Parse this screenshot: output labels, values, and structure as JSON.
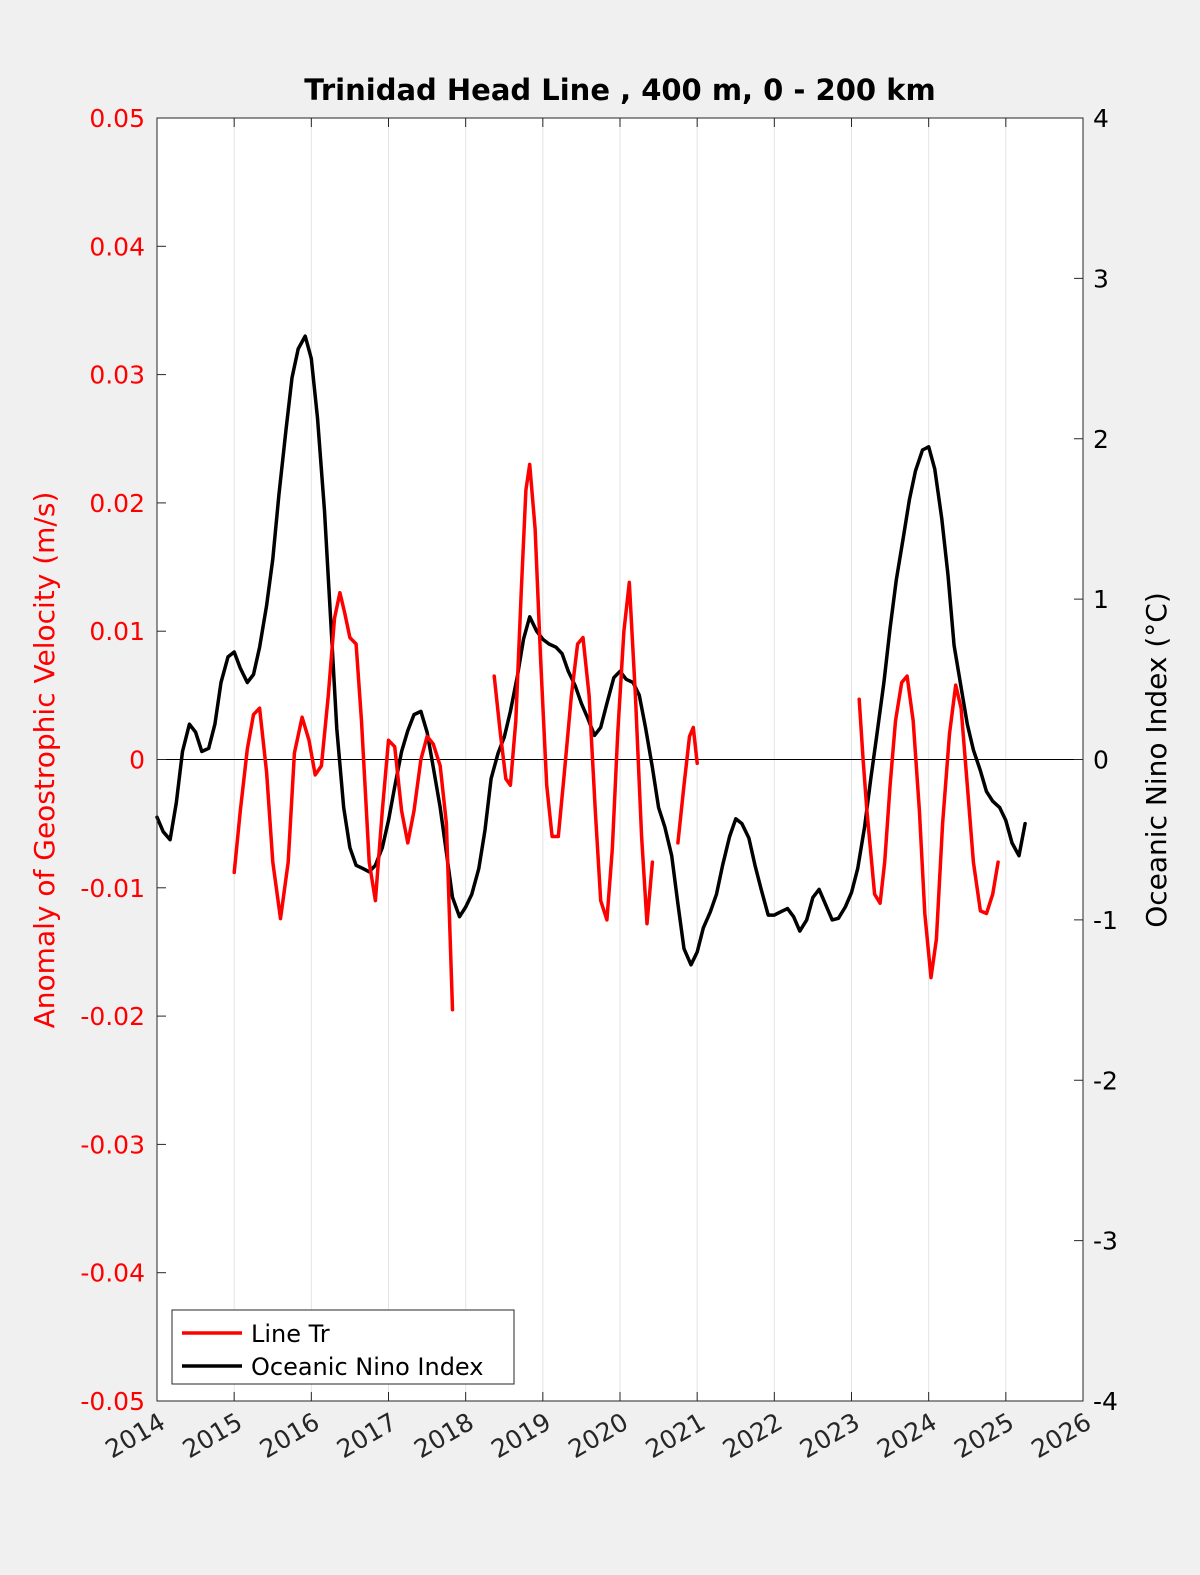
{
  "chart_data": {
    "type": "line",
    "title": "Trinidad Head Line , 400 m, 0 - 200 km",
    "xlim": [
      2014,
      2026
    ],
    "x_ticks": [
      "2014",
      "2015",
      "2016",
      "2017",
      "2018",
      "2019",
      "2020",
      "2021",
      "2022",
      "2023",
      "2024",
      "2025",
      "2026"
    ],
    "y_left": {
      "label": "Anomaly of Geostrophic Velocity (m/s)",
      "lim": [
        -0.05,
        0.05
      ],
      "ticks": [
        "-0.05",
        "-0.04",
        "-0.03",
        "-0.02",
        "-0.01",
        "0",
        "0.01",
        "0.02",
        "0.03",
        "0.04",
        "0.05"
      ],
      "color": "#ff0000"
    },
    "y_right": {
      "label": "Oceanic Nino Index (°C)",
      "lim": [
        -4,
        4
      ],
      "ticks": [
        "-4",
        "-3",
        "-2",
        "-1",
        "0",
        "1",
        "2",
        "3",
        "4"
      ],
      "color": "#000000"
    },
    "grid": "vertical",
    "legend_position": "bottom-left",
    "series": [
      {
        "name": "Line Tr",
        "axis": "left",
        "color": "#ff0000",
        "segments": [
          [
            [
              2015.0,
              -0.0088
            ],
            [
              2015.08,
              -0.004
            ],
            [
              2015.17,
              0.0008
            ],
            [
              2015.25,
              0.0035
            ],
            [
              2015.33,
              0.004
            ],
            [
              2015.42,
              -0.001
            ],
            [
              2015.5,
              -0.008
            ],
            [
              2015.6,
              -0.0124
            ],
            [
              2015.7,
              -0.008
            ],
            [
              2015.78,
              0.0005
            ],
            [
              2015.88,
              0.0033
            ],
            [
              2015.97,
              0.0015
            ],
            [
              2016.05,
              -0.0012
            ],
            [
              2016.13,
              -0.0005
            ],
            [
              2016.22,
              0.005
            ],
            [
              2016.3,
              0.011
            ],
            [
              2016.37,
              0.013
            ],
            [
              2016.43,
              0.0115
            ],
            [
              2016.5,
              0.0095
            ],
            [
              2016.58,
              0.009
            ],
            [
              2016.65,
              0.003
            ],
            [
              2016.75,
              -0.008
            ],
            [
              2016.83,
              -0.011
            ],
            [
              2016.92,
              -0.004
            ],
            [
              2017.0,
              0.0015
            ],
            [
              2017.08,
              0.001
            ],
            [
              2017.17,
              -0.004
            ],
            [
              2017.25,
              -0.0065
            ],
            [
              2017.33,
              -0.004
            ],
            [
              2017.42,
              0.0
            ],
            [
              2017.5,
              0.0018
            ],
            [
              2017.58,
              0.0012
            ],
            [
              2017.67,
              -0.0005
            ],
            [
              2017.75,
              -0.005
            ],
            [
              2017.83,
              -0.0195
            ]
          ],
          [
            [
              2018.37,
              0.0065
            ],
            [
              2018.45,
              0.002
            ],
            [
              2018.52,
              -0.0015
            ],
            [
              2018.58,
              -0.002
            ],
            [
              2018.65,
              0.003
            ],
            [
              2018.72,
              0.013
            ],
            [
              2018.78,
              0.021
            ],
            [
              2018.83,
              0.023
            ],
            [
              2018.9,
              0.018
            ],
            [
              2018.97,
              0.008
            ],
            [
              2019.05,
              -0.002
            ],
            [
              2019.12,
              -0.006
            ],
            [
              2019.2,
              -0.006
            ],
            [
              2019.28,
              -0.001
            ],
            [
              2019.37,
              0.005
            ],
            [
              2019.45,
              0.009
            ],
            [
              2019.52,
              0.0095
            ],
            [
              2019.6,
              0.005
            ],
            [
              2019.68,
              -0.004
            ],
            [
              2019.75,
              -0.011
            ],
            [
              2019.83,
              -0.0125
            ],
            [
              2019.9,
              -0.007
            ],
            [
              2019.97,
              0.002
            ],
            [
              2020.05,
              0.01
            ],
            [
              2020.12,
              0.0138
            ],
            [
              2020.2,
              0.005
            ],
            [
              2020.28,
              -0.006
            ],
            [
              2020.35,
              -0.0128
            ],
            [
              2020.42,
              -0.008
            ]
          ],
          [
            [
              2020.75,
              -0.0065
            ],
            [
              2020.83,
              -0.002
            ],
            [
              2020.9,
              0.0018
            ],
            [
              2020.95,
              0.0025
            ],
            [
              2021.0,
              -0.0003
            ]
          ],
          [
            [
              2023.1,
              0.0047
            ],
            [
              2023.15,
              0.0
            ],
            [
              2023.2,
              -0.004
            ],
            [
              2023.3,
              -0.0105
            ],
            [
              2023.37,
              -0.0112
            ],
            [
              2023.43,
              -0.008
            ],
            [
              2023.5,
              -0.002
            ],
            [
              2023.57,
              0.003
            ],
            [
              2023.65,
              0.006
            ],
            [
              2023.72,
              0.0065
            ],
            [
              2023.8,
              0.003
            ],
            [
              2023.88,
              -0.004
            ],
            [
              2023.95,
              -0.012
            ],
            [
              2024.03,
              -0.017
            ],
            [
              2024.1,
              -0.014
            ],
            [
              2024.18,
              -0.005
            ],
            [
              2024.27,
              0.002
            ],
            [
              2024.35,
              0.0058
            ],
            [
              2024.42,
              0.004
            ],
            [
              2024.5,
              -0.002
            ],
            [
              2024.58,
              -0.008
            ],
            [
              2024.67,
              -0.0118
            ],
            [
              2024.75,
              -0.012
            ],
            [
              2024.83,
              -0.0105
            ],
            [
              2024.9,
              -0.008
            ]
          ]
        ]
      },
      {
        "name": "Oceanic Nino Index",
        "axis": "right",
        "color": "#000000",
        "segments": [
          [
            [
              2014.0,
              -0.36
            ],
            [
              2014.08,
              -0.45
            ],
            [
              2014.17,
              -0.5
            ],
            [
              2014.25,
              -0.27
            ],
            [
              2014.33,
              0.05
            ],
            [
              2014.42,
              0.22
            ],
            [
              2014.5,
              0.17
            ],
            [
              2014.58,
              0.05
            ],
            [
              2014.67,
              0.07
            ],
            [
              2014.75,
              0.22
            ],
            [
              2014.83,
              0.48
            ],
            [
              2014.92,
              0.64
            ],
            [
              2015.0,
              0.67
            ],
            [
              2015.08,
              0.57
            ],
            [
              2015.17,
              0.48
            ],
            [
              2015.25,
              0.53
            ],
            [
              2015.33,
              0.7
            ],
            [
              2015.42,
              0.96
            ],
            [
              2015.5,
              1.25
            ],
            [
              2015.58,
              1.65
            ],
            [
              2015.67,
              2.05
            ],
            [
              2015.75,
              2.38
            ],
            [
              2015.83,
              2.56
            ],
            [
              2015.92,
              2.64
            ],
            [
              2016.0,
              2.5
            ],
            [
              2016.08,
              2.13
            ],
            [
              2016.17,
              1.55
            ],
            [
              2016.25,
              0.88
            ],
            [
              2016.33,
              0.19
            ],
            [
              2016.42,
              -0.3
            ],
            [
              2016.5,
              -0.55
            ],
            [
              2016.58,
              -0.66
            ],
            [
              2016.67,
              -0.68
            ],
            [
              2016.75,
              -0.7
            ],
            [
              2016.83,
              -0.66
            ],
            [
              2016.92,
              -0.55
            ],
            [
              2017.0,
              -0.38
            ],
            [
              2017.08,
              -0.17
            ],
            [
              2017.17,
              0.05
            ],
            [
              2017.25,
              0.18
            ],
            [
              2017.33,
              0.28
            ],
            [
              2017.42,
              0.3
            ],
            [
              2017.5,
              0.17
            ],
            [
              2017.58,
              -0.05
            ],
            [
              2017.67,
              -0.3
            ],
            [
              2017.75,
              -0.58
            ],
            [
              2017.83,
              -0.86
            ],
            [
              2017.92,
              -0.98
            ],
            [
              2018.0,
              -0.92
            ],
            [
              2018.08,
              -0.84
            ],
            [
              2018.17,
              -0.68
            ],
            [
              2018.25,
              -0.44
            ],
            [
              2018.33,
              -0.12
            ],
            [
              2018.42,
              0.04
            ],
            [
              2018.5,
              0.14
            ],
            [
              2018.58,
              0.3
            ],
            [
              2018.67,
              0.52
            ],
            [
              2018.75,
              0.75
            ],
            [
              2018.83,
              0.89
            ],
            [
              2018.92,
              0.8
            ],
            [
              2019.0,
              0.75
            ],
            [
              2019.08,
              0.72
            ],
            [
              2019.17,
              0.7
            ],
            [
              2019.25,
              0.66
            ],
            [
              2019.33,
              0.55
            ],
            [
              2019.42,
              0.46
            ],
            [
              2019.5,
              0.35
            ],
            [
              2019.58,
              0.26
            ],
            [
              2019.67,
              0.15
            ],
            [
              2019.75,
              0.2
            ],
            [
              2019.83,
              0.35
            ],
            [
              2019.92,
              0.51
            ],
            [
              2020.0,
              0.55
            ],
            [
              2020.08,
              0.5
            ],
            [
              2020.17,
              0.48
            ],
            [
              2020.25,
              0.4
            ],
            [
              2020.33,
              0.2
            ],
            [
              2020.42,
              -0.05
            ],
            [
              2020.5,
              -0.3
            ],
            [
              2020.58,
              -0.42
            ],
            [
              2020.67,
              -0.6
            ],
            [
              2020.75,
              -0.9
            ],
            [
              2020.83,
              -1.18
            ],
            [
              2020.92,
              -1.28
            ],
            [
              2021.0,
              -1.2
            ],
            [
              2021.08,
              -1.05
            ],
            [
              2021.17,
              -0.95
            ],
            [
              2021.25,
              -0.84
            ],
            [
              2021.33,
              -0.66
            ],
            [
              2021.42,
              -0.48
            ],
            [
              2021.5,
              -0.37
            ],
            [
              2021.58,
              -0.4
            ],
            [
              2021.67,
              -0.49
            ],
            [
              2021.75,
              -0.66
            ],
            [
              2021.83,
              -0.81
            ],
            [
              2021.92,
              -0.97
            ],
            [
              2022.0,
              -0.97
            ],
            [
              2022.08,
              -0.95
            ],
            [
              2022.17,
              -0.93
            ],
            [
              2022.25,
              -0.98
            ],
            [
              2022.33,
              -1.07
            ],
            [
              2022.42,
              -1.0
            ],
            [
              2022.5,
              -0.86
            ],
            [
              2022.58,
              -0.81
            ],
            [
              2022.67,
              -0.91
            ],
            [
              2022.75,
              -1.0
            ],
            [
              2022.83,
              -0.99
            ],
            [
              2022.92,
              -0.92
            ],
            [
              2023.0,
              -0.83
            ],
            [
              2023.08,
              -0.68
            ],
            [
              2023.17,
              -0.42
            ],
            [
              2023.25,
              -0.12
            ],
            [
              2023.33,
              0.16
            ],
            [
              2023.42,
              0.48
            ],
            [
              2023.5,
              0.82
            ],
            [
              2023.58,
              1.12
            ],
            [
              2023.67,
              1.38
            ],
            [
              2023.75,
              1.62
            ],
            [
              2023.83,
              1.8
            ],
            [
              2023.92,
              1.93
            ],
            [
              2024.0,
              1.95
            ],
            [
              2024.08,
              1.81
            ],
            [
              2024.17,
              1.5
            ],
            [
              2024.25,
              1.15
            ],
            [
              2024.33,
              0.71
            ],
            [
              2024.42,
              0.45
            ],
            [
              2024.5,
              0.22
            ],
            [
              2024.58,
              0.06
            ],
            [
              2024.67,
              -0.07
            ],
            [
              2024.75,
              -0.2
            ],
            [
              2024.83,
              -0.26
            ],
            [
              2024.92,
              -0.3
            ],
            [
              2025.0,
              -0.38
            ],
            [
              2025.08,
              -0.52
            ],
            [
              2025.17,
              -0.6
            ],
            [
              2025.25,
              -0.4
            ]
          ]
        ]
      }
    ]
  }
}
